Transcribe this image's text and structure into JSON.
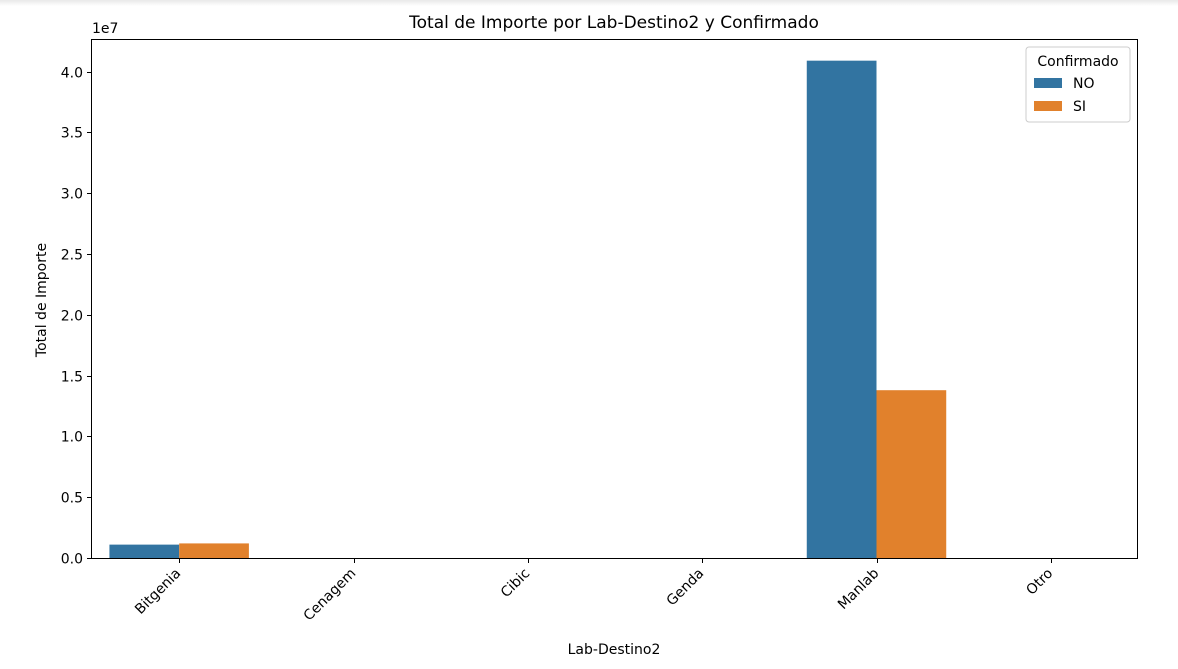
{
  "chart_data": {
    "type": "bar",
    "title": "Total de Importe por Lab-Destino2 y Confirmado",
    "xlabel": "Lab-Destino2",
    "ylabel": "Total de Importe",
    "y_offset_text": "1e7",
    "y_scale_factor": 10000000,
    "categories": [
      "Bitgenia",
      "Cenagem",
      "Cibic",
      "Genda",
      "Manlab",
      "Otro"
    ],
    "series": [
      {
        "name": "NO",
        "color": "#3274a1",
        "values": [
          1100000,
          0,
          0,
          0,
          40900000,
          0
        ]
      },
      {
        "name": "SI",
        "color": "#e1812c",
        "values": [
          1200000,
          0,
          0,
          0,
          13800000,
          0
        ]
      }
    ],
    "ylim": [
      0,
      42600000
    ],
    "yticks": [
      0,
      5000000,
      10000000,
      15000000,
      20000000,
      25000000,
      30000000,
      35000000,
      40000000
    ],
    "ytick_labels": [
      "0.0",
      "0.5",
      "1.0",
      "1.5",
      "2.0",
      "2.5",
      "3.0",
      "3.5",
      "4.0"
    ],
    "legend": {
      "title": "Confirmado",
      "placement": "top-right"
    },
    "grid": false
  }
}
